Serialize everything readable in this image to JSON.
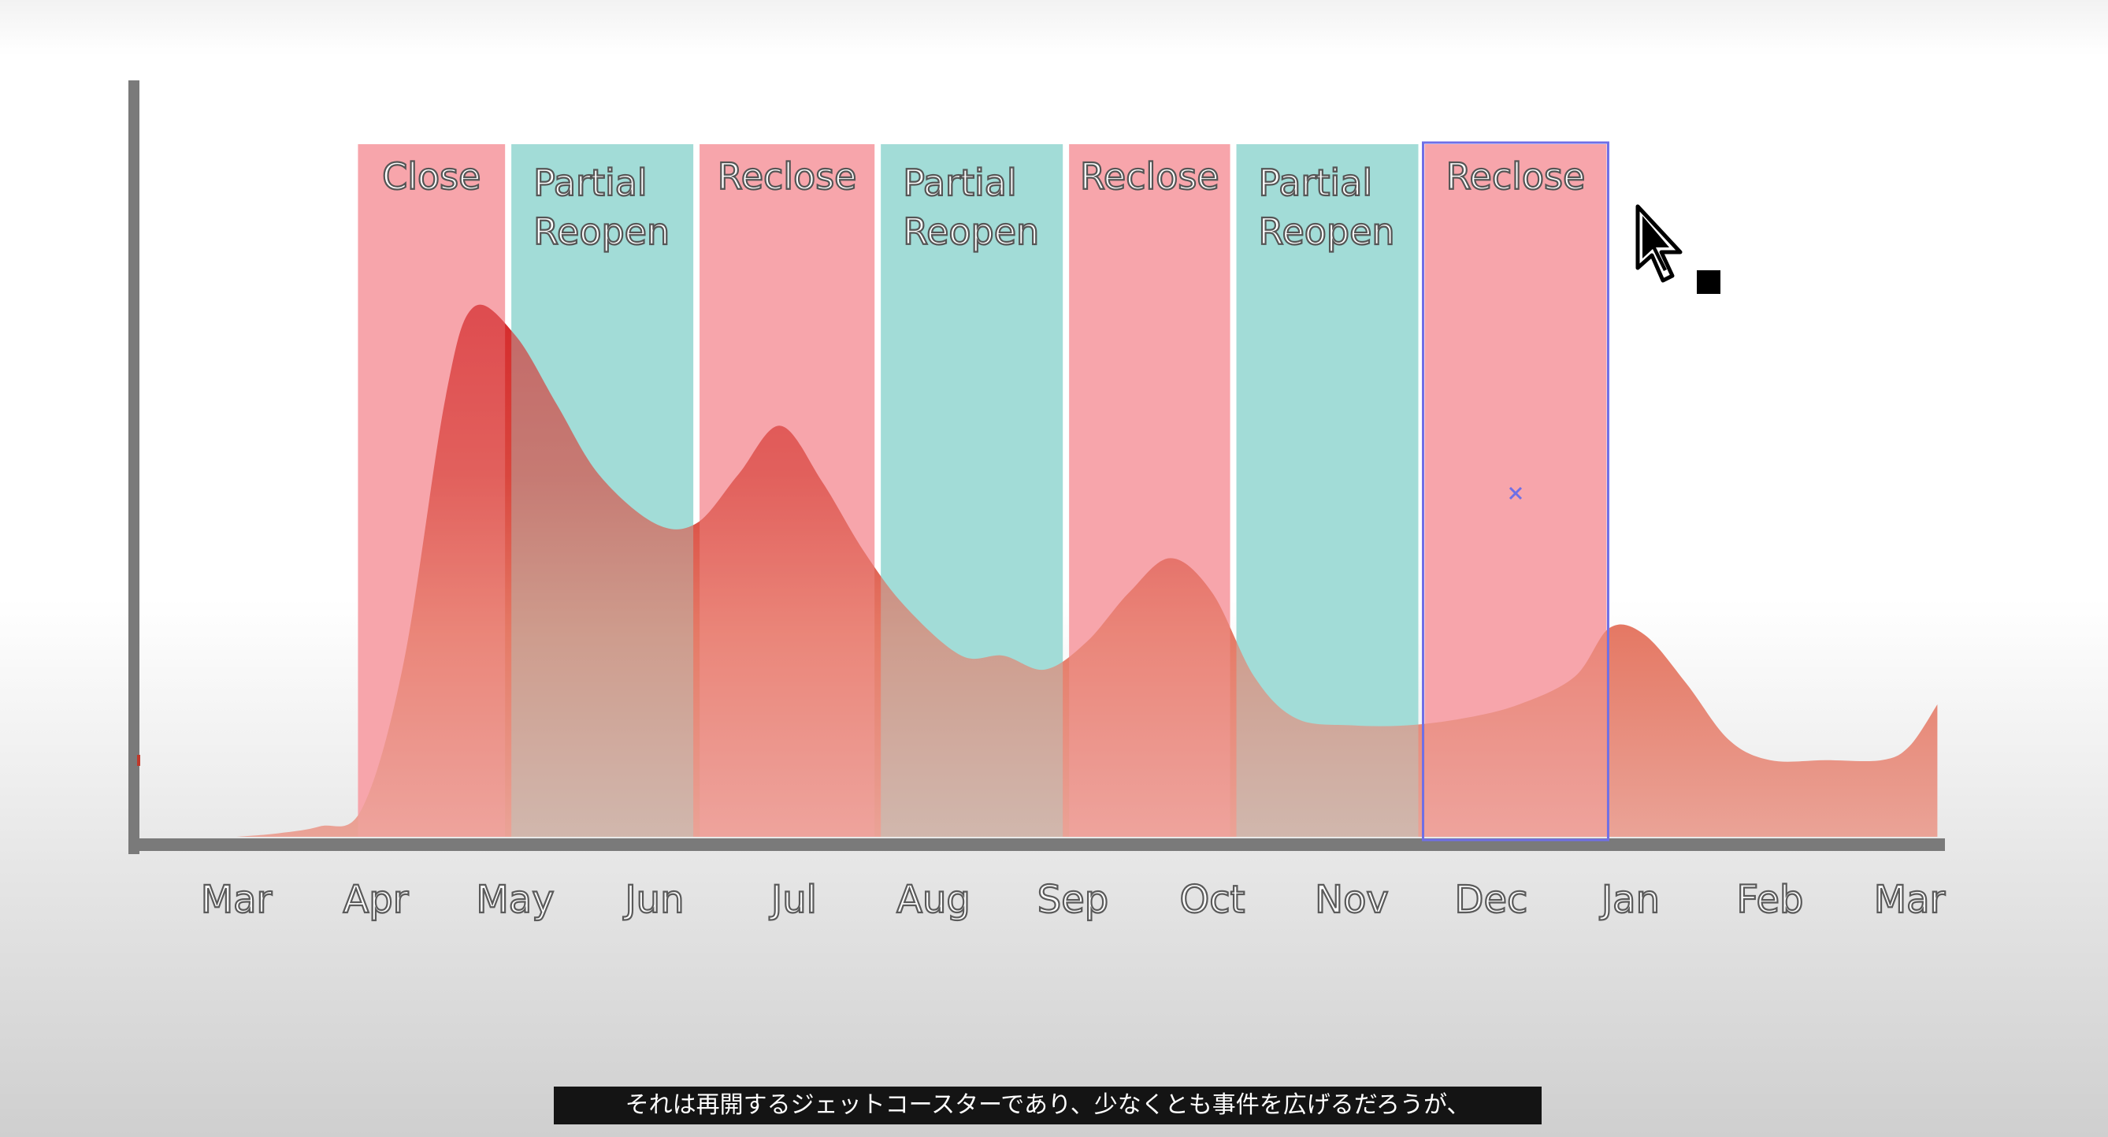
{
  "chart_data": {
    "type": "area",
    "title": "",
    "xlabel": "",
    "ylabel": "",
    "grid": false,
    "categories": [
      "Mar",
      "Apr",
      "May",
      "Jun",
      "Jul",
      "Aug",
      "Sep",
      "Oct",
      "Nov",
      "Dec",
      "Jan",
      "Feb",
      "Mar"
    ],
    "ylim": [
      0,
      100
    ],
    "series": [
      {
        "x": [
          0,
          0.3,
          0.6,
          0.9,
          1.2,
          1.5,
          1.7,
          2.0,
          2.3,
          2.6,
          3.0,
          3.3,
          3.6,
          3.9,
          4.2,
          4.5,
          4.8,
          5.2,
          5.5,
          5.8,
          6.1,
          6.4,
          6.7,
          7.0,
          7.3,
          7.6,
          8.0,
          8.4,
          8.8,
          9.2,
          9.6,
          9.85,
          10.1,
          10.4,
          10.7,
          11.0,
          11.4,
          11.8,
          12.0,
          12.2
        ],
        "values": [
          0,
          0.5,
          1.5,
          4,
          25,
          63,
          76,
          72,
          62,
          52,
          45,
          45,
          52,
          59,
          51,
          41,
          33,
          26,
          26,
          24,
          28,
          35,
          40,
          35,
          23,
          17,
          16,
          16,
          17,
          19,
          23,
          30,
          29,
          22,
          14,
          11,
          11,
          11,
          13,
          19
        ]
      }
    ],
    "phases": [
      {
        "label": [
          "Close"
        ],
        "start": 0.85,
        "end": 1.95,
        "color": "#f7a5ab"
      },
      {
        "label": [
          "Partial",
          "Reopen"
        ],
        "start": 1.95,
        "end": 3.3,
        "color": "#a2dcd7"
      },
      {
        "label": [
          "Reclose"
        ],
        "start": 3.3,
        "end": 4.6,
        "color": "#f7a5ab"
      },
      {
        "label": [
          "Partial",
          "Reopen"
        ],
        "start": 4.6,
        "end": 5.95,
        "color": "#a2dcd7"
      },
      {
        "label": [
          "Reclose"
        ],
        "start": 5.95,
        "end": 7.15,
        "color": "#f7a5ab"
      },
      {
        "label": [
          "Partial",
          "Reopen"
        ],
        "start": 7.15,
        "end": 8.5,
        "color": "#a2dcd7"
      },
      {
        "label": [
          "Reclose"
        ],
        "start": 8.5,
        "end": 9.85,
        "color": "#f7a5ab",
        "selected": true
      }
    ],
    "colors": {
      "close": "#f7a5ab",
      "reopen": "#a2dcd7",
      "curve_top": "#d52f2f",
      "curve_bottom": "#e8a59c",
      "axis": "#7a7a7a",
      "selection": "#6f6fe6"
    }
  },
  "subtitle": "それは再開するジェットコースターであり、少なくとも事件を広げるだろうが、"
}
